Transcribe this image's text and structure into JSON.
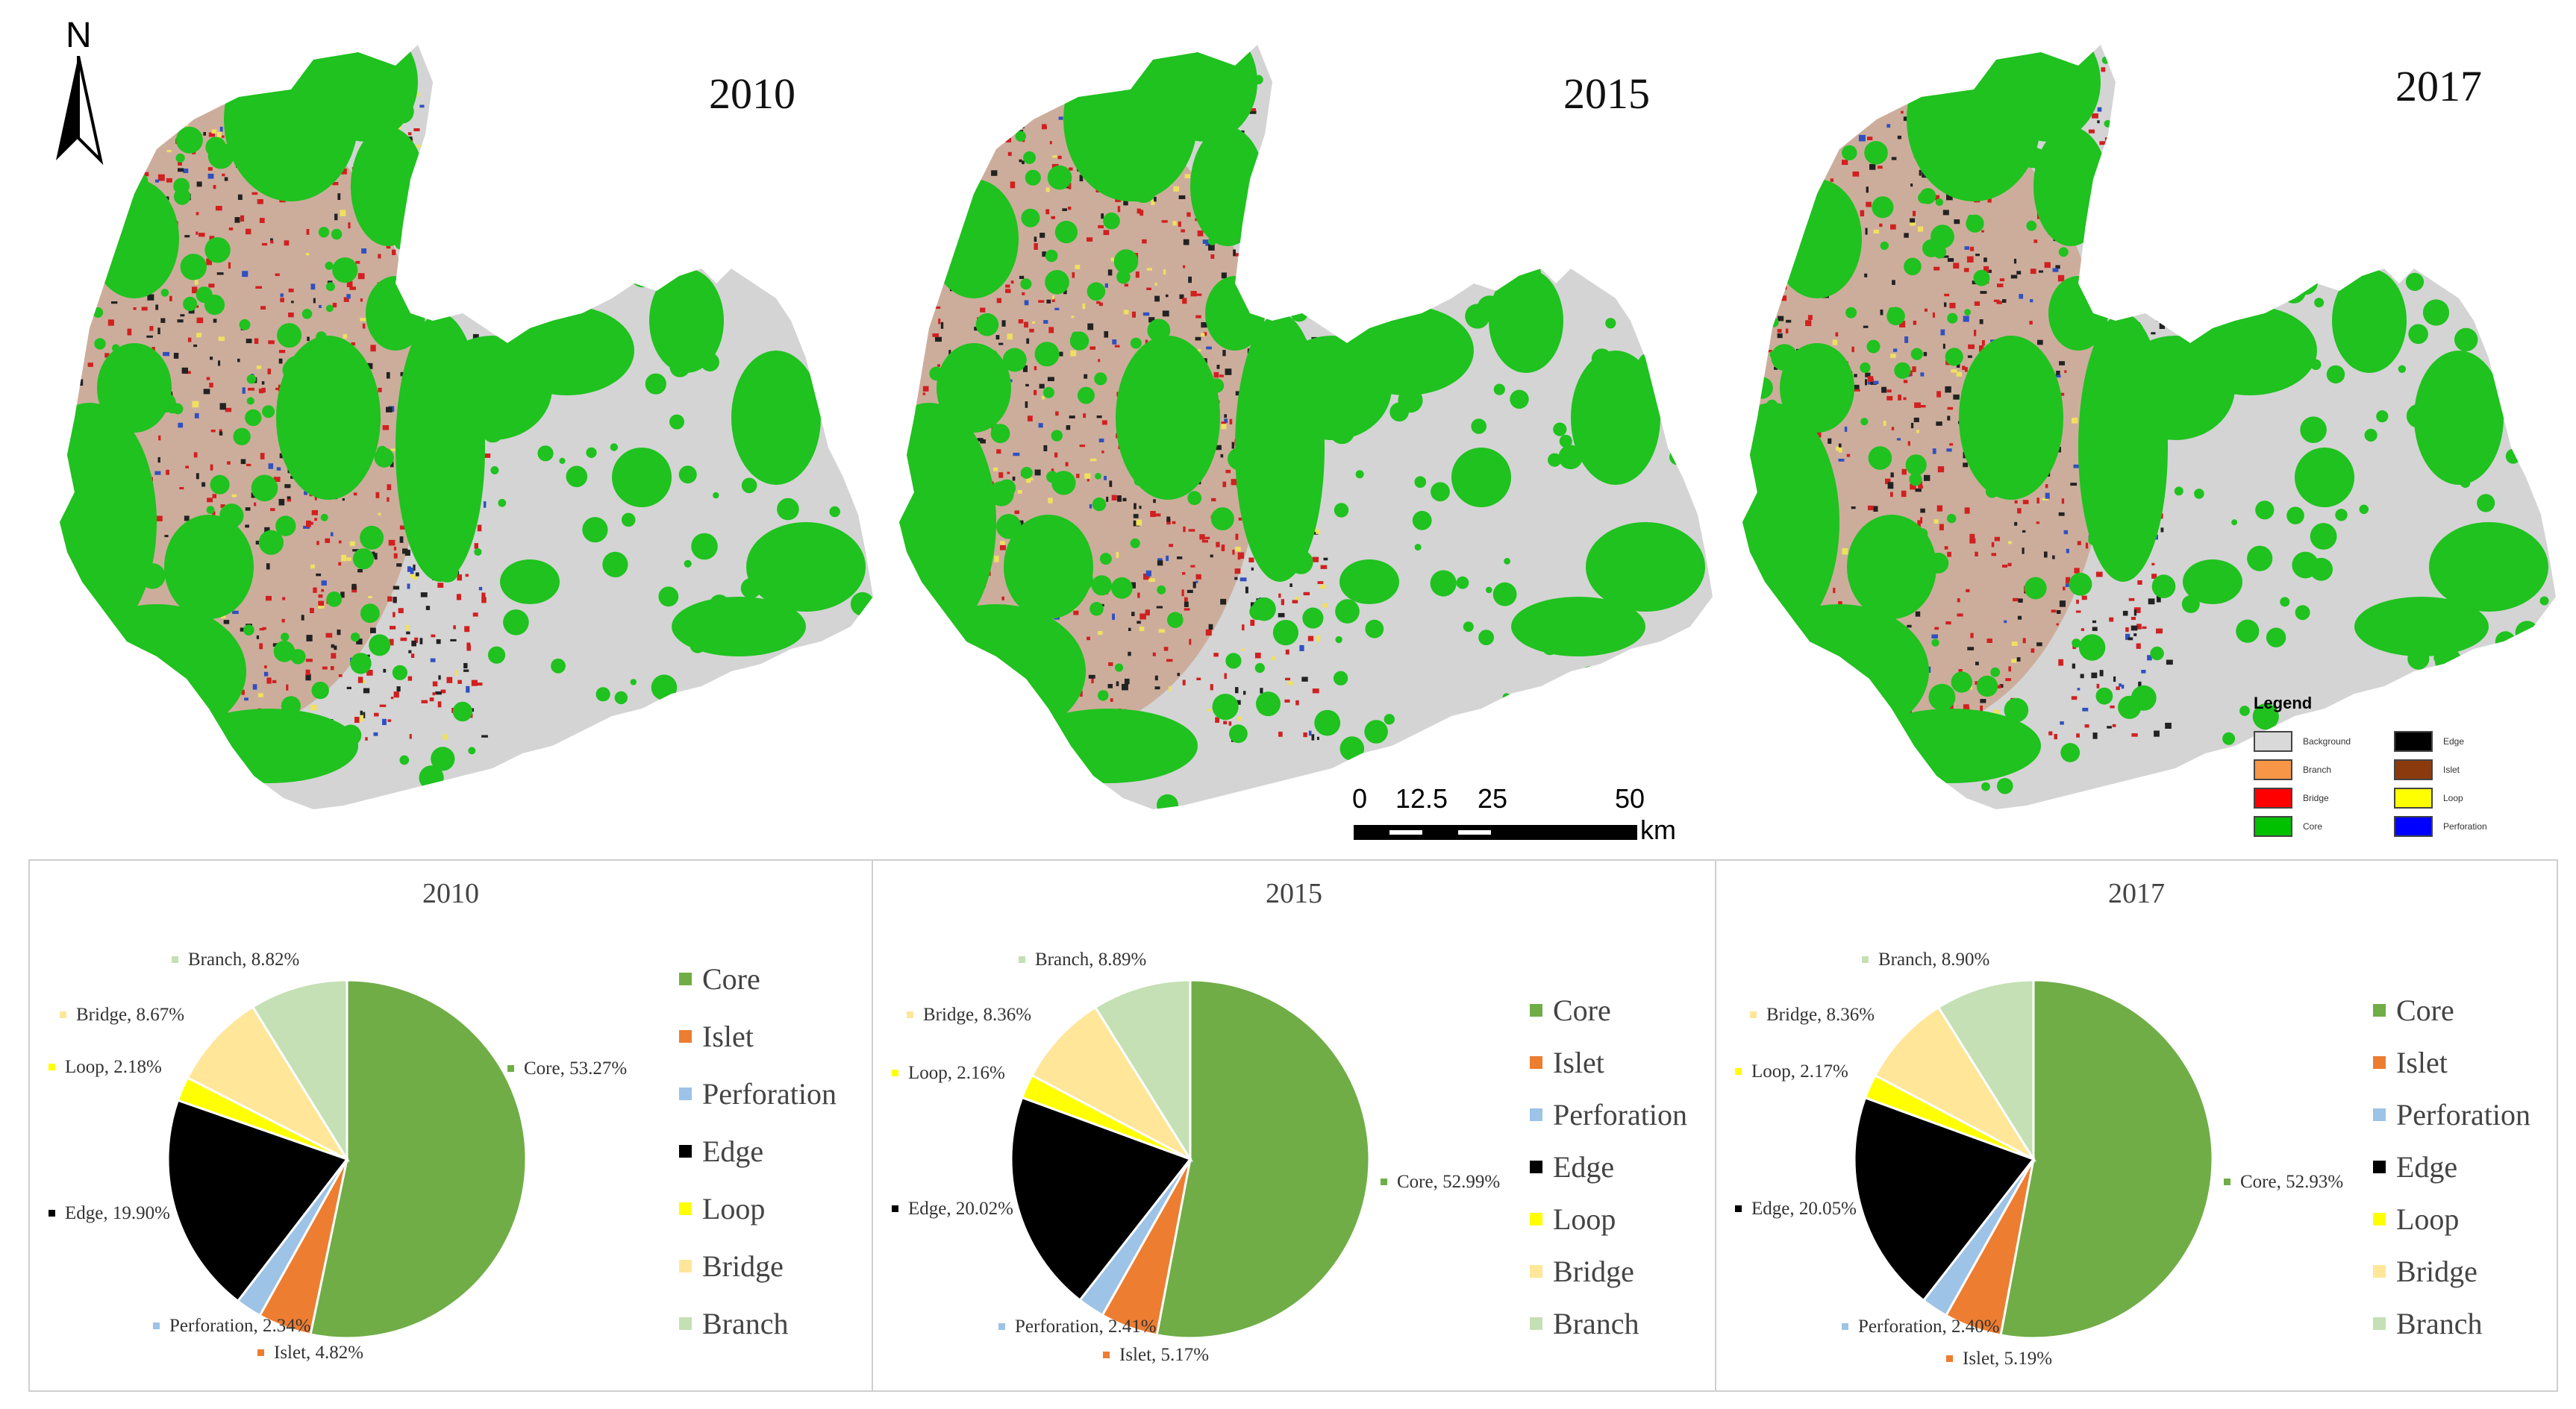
{
  "map": {
    "north_label": "N",
    "panels": [
      {
        "year": "2010"
      },
      {
        "year": "2015"
      },
      {
        "year": "2017"
      }
    ],
    "scalebar": {
      "ticks": [
        "0",
        "12.5",
        "25",
        "50"
      ],
      "unit": "km"
    },
    "legend": {
      "title": "Legend",
      "items": [
        {
          "label": "Background",
          "color": "#d9d9d9"
        },
        {
          "label": "Edge",
          "color": "#000000"
        },
        {
          "label": "Branch",
          "color": "#f79646"
        },
        {
          "label": "Islet",
          "color": "#8b3a0e"
        },
        {
          "label": "Bridge",
          "color": "#ff0000"
        },
        {
          "label": "Loop",
          "color": "#ffff00"
        },
        {
          "label": "Core",
          "color": "#00c000"
        },
        {
          "label": "Perforation",
          "color": "#0000ff"
        }
      ]
    }
  },
  "chart_data": [
    {
      "type": "pie",
      "title": "2010",
      "slices": [
        {
          "name": "Core",
          "value": 53.27,
          "label": "Core, 53.27%",
          "color": "#70ad47"
        },
        {
          "name": "Islet",
          "value": 4.82,
          "label": "Islet, 4.82%",
          "color": "#ed7d31"
        },
        {
          "name": "Perforation",
          "value": 2.34,
          "label": "Perforation, 2.34%",
          "color": "#9dc3e6"
        },
        {
          "name": "Edge",
          "value": 19.9,
          "label": "Edge, 19.90%",
          "color": "#000000"
        },
        {
          "name": "Loop",
          "value": 2.18,
          "label": "Loop, 2.18%",
          "color": "#ffff00"
        },
        {
          "name": "Bridge",
          "value": 8.67,
          "label": "Bridge, 8.67%",
          "color": "#ffe699"
        },
        {
          "name": "Branch",
          "value": 8.82,
          "label": "Branch, 8.82%",
          "color": "#c5e0b4"
        }
      ],
      "legend": [
        "Core",
        "Islet",
        "Perforation",
        "Edge",
        "Loop",
        "Bridge",
        "Branch"
      ],
      "legend_position": "right"
    },
    {
      "type": "pie",
      "title": "2015",
      "slices": [
        {
          "name": "Core",
          "value": 52.99,
          "label": "Core, 52.99%",
          "color": "#70ad47"
        },
        {
          "name": "Islet",
          "value": 5.17,
          "label": "Islet, 5.17%",
          "color": "#ed7d31"
        },
        {
          "name": "Perforation",
          "value": 2.41,
          "label": "Perforation, 2.41%",
          "color": "#9dc3e6"
        },
        {
          "name": "Edge",
          "value": 20.02,
          "label": "Edge, 20.02%",
          "color": "#000000"
        },
        {
          "name": "Loop",
          "value": 2.16,
          "label": "Loop, 2.16%",
          "color": "#ffff00"
        },
        {
          "name": "Bridge",
          "value": 8.36,
          "label": "Bridge, 8.36%",
          "color": "#ffe699"
        },
        {
          "name": "Branch",
          "value": 8.89,
          "label": "Branch, 8.89%",
          "color": "#c5e0b4"
        }
      ],
      "legend": [
        "Core",
        "Islet",
        "Perforation",
        "Edge",
        "Loop",
        "Bridge",
        "Branch"
      ],
      "legend_position": "right"
    },
    {
      "type": "pie",
      "title": "2017",
      "slices": [
        {
          "name": "Core",
          "value": 52.93,
          "label": "Core, 52.93%",
          "color": "#70ad47"
        },
        {
          "name": "Islet",
          "value": 5.19,
          "label": "Islet, 5.19%",
          "color": "#ed7d31"
        },
        {
          "name": "Perforation",
          "value": 2.4,
          "label": "Perforation, 2.40%",
          "color": "#9dc3e6"
        },
        {
          "name": "Edge",
          "value": 20.05,
          "label": "Edge, 20.05%",
          "color": "#000000"
        },
        {
          "name": "Loop",
          "value": 2.17,
          "label": "Loop, 2.17%",
          "color": "#ffff00"
        },
        {
          "name": "Bridge",
          "value": 8.36,
          "label": "Bridge, 8.36%",
          "color": "#ffe699"
        },
        {
          "name": "Branch",
          "value": 8.9,
          "label": "Branch, 8.90%",
          "color": "#c5e0b4"
        }
      ],
      "legend": [
        "Core",
        "Islet",
        "Perforation",
        "Edge",
        "Loop",
        "Bridge",
        "Branch"
      ],
      "legend_position": "right"
    }
  ]
}
